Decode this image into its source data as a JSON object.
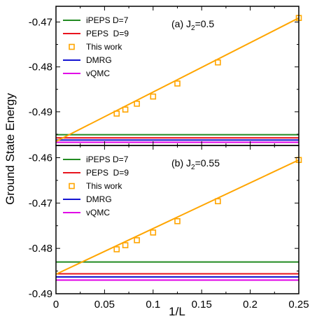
{
  "figure": {
    "ylabel": "Ground State Energy",
    "xlabel": "1/L"
  },
  "chart_data": [
    {
      "type": "line",
      "panel_label": "(a) J",
      "panel_label_sub": "2",
      "panel_label_value": "=0.5",
      "xlim": [
        0,
        0.25
      ],
      "ylim": [
        -0.4975,
        -0.4665
      ],
      "x_ticks": [
        0,
        0.05,
        0.1,
        0.15,
        0.2,
        0.25
      ],
      "x_tick_labels": [
        "",
        "",
        "",
        "",
        "",
        ""
      ],
      "y_ticks": [
        -0.47,
        -0.48,
        -0.49
      ],
      "y_tick_labels": [
        "-0.47",
        "-0.48",
        "-0.49"
      ],
      "grid": false,
      "legend_position": "top-left",
      "legend": [
        {
          "label": "iPEPS D=7",
          "color": "#228b22",
          "kind": "line"
        },
        {
          "label": "PEPS  D=9",
          "color": "#e8141e",
          "kind": "line"
        },
        {
          "label": "This work",
          "color": "#ffa500",
          "kind": "square"
        },
        {
          "label": "DMRG",
          "color": "#1414d2",
          "kind": "line"
        },
        {
          "label": "vQMC",
          "color": "#e100e6",
          "kind": "line"
        }
      ],
      "reference_lines": [
        {
          "name": "iPEPS D=7",
          "color": "#228b22",
          "y": -0.4951
        },
        {
          "name": "PEPS  D=9",
          "color": "#e8141e",
          "y": -0.4958
        },
        {
          "name": "DMRG",
          "color": "#1414d2",
          "y": -0.4963
        },
        {
          "name": "vQMC",
          "color": "#e100e6",
          "y": -0.4968
        }
      ],
      "fit_line": {
        "name": "This work",
        "color": "#ffa500",
        "x": [
          0,
          0.25
        ],
        "y": [
          -0.4966,
          -0.4691
        ]
      },
      "series": [
        {
          "name": "This work",
          "color": "#ffa500",
          "x": [
            0.0625,
            0.0714,
            0.0833,
            0.1,
            0.125,
            0.1667,
            0.25
          ],
          "y": [
            -0.4904,
            -0.4895,
            -0.4882,
            -0.4866,
            -0.4837,
            -0.479,
            -0.4691
          ]
        }
      ]
    },
    {
      "type": "line",
      "panel_label": "(b) J",
      "panel_label_sub": "2",
      "panel_label_value": "=0.55",
      "xlim": [
        0,
        0.25
      ],
      "ylim": [
        -0.49,
        -0.4573
      ],
      "x_ticks": [
        0,
        0.05,
        0.1,
        0.15,
        0.2,
        0.25
      ],
      "x_tick_labels": [
        "0",
        "0.05",
        "0.1",
        "0.15",
        "0.2",
        "0.25"
      ],
      "y_ticks": [
        -0.46,
        -0.47,
        -0.48,
        -0.49
      ],
      "y_tick_labels": [
        "-0.46",
        "-0.47",
        "-0.48",
        "-0.49"
      ],
      "grid": false,
      "legend_position": "top-left",
      "legend": [
        {
          "label": "iPEPS D=7",
          "color": "#228b22",
          "kind": "line"
        },
        {
          "label": "PEPS  D=9",
          "color": "#e8141e",
          "kind": "line"
        },
        {
          "label": "This work",
          "color": "#ffa500",
          "kind": "square"
        },
        {
          "label": "DMRG",
          "color": "#1414d2",
          "kind": "line"
        },
        {
          "label": "vQMC",
          "color": "#e100e6",
          "kind": "line"
        }
      ],
      "reference_lines": [
        {
          "name": "iPEPS D=7",
          "color": "#228b22",
          "y": -0.483
        },
        {
          "name": "PEPS  D=9",
          "color": "#e8141e",
          "y": -0.4856
        },
        {
          "name": "DMRG",
          "color": "#1414d2",
          "y": -0.4863
        },
        {
          "name": "vQMC",
          "color": "#e100e6",
          "y": -0.487
        }
      ],
      "fit_line": {
        "name": "This work",
        "color": "#ffa500",
        "x": [
          0,
          0.25
        ],
        "y": [
          -0.4857,
          -0.4605
        ]
      },
      "series": [
        {
          "name": "This work",
          "color": "#ffa500",
          "x": [
            0.0625,
            0.0714,
            0.0833,
            0.1,
            0.125,
            0.1667,
            0.25
          ],
          "y": [
            -0.4802,
            -0.4793,
            -0.4782,
            -0.4765,
            -0.474,
            -0.4696,
            -0.4605
          ]
        }
      ]
    }
  ]
}
